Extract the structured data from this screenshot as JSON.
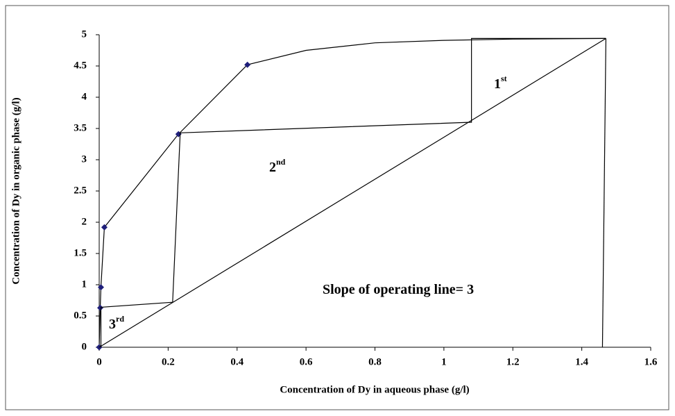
{
  "chart_data": {
    "type": "line",
    "xlabel": "Concentration  of Dy in aqueous phase (g/l)",
    "ylabel": "Concentration  of Dy in organic phase (g/l)",
    "xlim": [
      0,
      1.6
    ],
    "xticks": [
      0,
      0.2,
      0.4,
      0.6,
      0.8,
      1,
      1.2,
      1.4,
      1.6
    ],
    "ylim": [
      0,
      5
    ],
    "yticks": [
      0,
      0.5,
      1,
      1.5,
      2,
      2.5,
      3,
      3.5,
      4,
      4.5,
      5
    ],
    "series": [
      {
        "color": "#000000",
        "line": true,
        "marker": false,
        "x": [
          0,
          0.003,
          0.005,
          0.015,
          0.23,
          0.43,
          0.6,
          0.8,
          1.0,
          1.2,
          1.47
        ],
        "values": [
          0,
          0.63,
          0.96,
          1.92,
          3.41,
          4.52,
          4.75,
          4.87,
          4.91,
          4.93,
          4.94
        ]
      },
      {
        "color": "#1f1f7a",
        "line": false,
        "marker": true,
        "x": [
          0,
          0.003,
          0.005,
          0.015,
          0.23,
          0.43
        ],
        "values": [
          0,
          0.63,
          0.96,
          1.92,
          3.41,
          4.52
        ]
      },
      {
        "color": "#000000",
        "line": true,
        "marker": false,
        "x": [
          0,
          1.47
        ],
        "values": [
          0,
          4.94
        ]
      },
      {
        "color": "#000000",
        "line": true,
        "marker": false,
        "x": [
          1.47,
          1.08,
          1.08,
          0.235,
          0.213,
          0.005,
          0.005
        ],
        "values": [
          4.94,
          4.94,
          3.6,
          3.43,
          0.72,
          0.64,
          0
        ]
      },
      {
        "color": "#000000",
        "line": true,
        "marker": false,
        "x": [
          1.47,
          1.46
        ],
        "values": [
          4.94,
          0
        ]
      }
    ],
    "annotations": [
      {
        "main": "1",
        "sup": "st"
      },
      {
        "main": "2",
        "sup": "nd"
      },
      {
        "main": "3",
        "sup": "rd"
      },
      {
        "main": "Slope of operating line= 3"
      }
    ]
  }
}
